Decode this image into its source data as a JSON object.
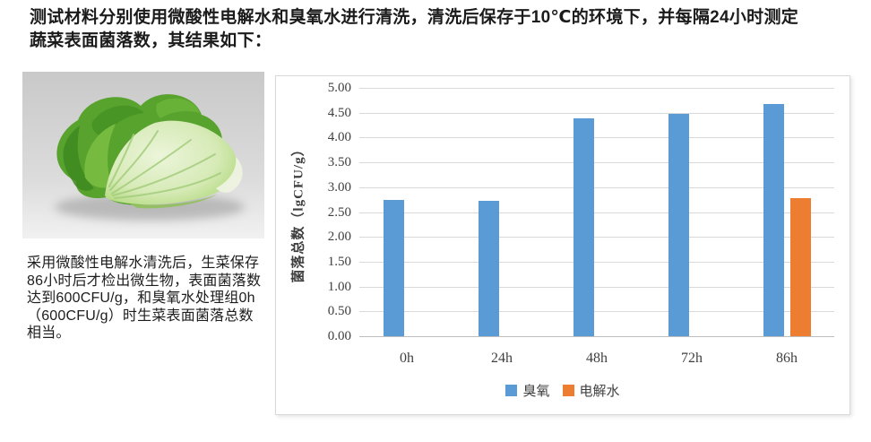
{
  "intro": {
    "lines": [
      "测试材料分别使用微酸性电解水和臭氧水进行清洗，清洗后保存于10℃的环境下，并每隔24小时测定",
      "蔬菜表面菌落数，其结果如下："
    ]
  },
  "caption": {
    "lines": [
      "采用微酸性电解水清洗后，生菜保存",
      "86小时后才检出微生物，表面菌落数",
      "达到600CFU/g，和臭氧水处理组0h",
      "（600CFU/g）时生菜表面菌落总数",
      "相当。"
    ]
  },
  "figure": {
    "icon": "lettuce-photo"
  },
  "chart_data": {
    "type": "bar",
    "categories": [
      "0h",
      "24h",
      "48h",
      "72h",
      "86h"
    ],
    "series": [
      {
        "name": "臭氧",
        "color": "#5B9BD5",
        "values": [
          2.75,
          2.72,
          4.38,
          4.47,
          4.68
        ]
      },
      {
        "name": "电解水",
        "color": "#ED7D31",
        "values": [
          null,
          null,
          null,
          null,
          2.78
        ]
      }
    ],
    "xlabel": "",
    "ylabel": "菌落总数（lgCFU/g）",
    "ylim": [
      0,
      5
    ],
    "ytick_step": 0.5,
    "yticks": [
      "5.00",
      "4.50",
      "4.00",
      "3.50",
      "3.00",
      "2.50",
      "2.00",
      "1.50",
      "1.00",
      "0.50",
      "0.00"
    ],
    "grid": true,
    "legend_position": "bottom",
    "colors": {
      "grid": "#d9d9d9",
      "axis": "#bdbdbd",
      "tick_text": "#3f3f3f",
      "ozone": "#5B9BD5",
      "electrolyzed_water": "#ED7D31"
    }
  }
}
